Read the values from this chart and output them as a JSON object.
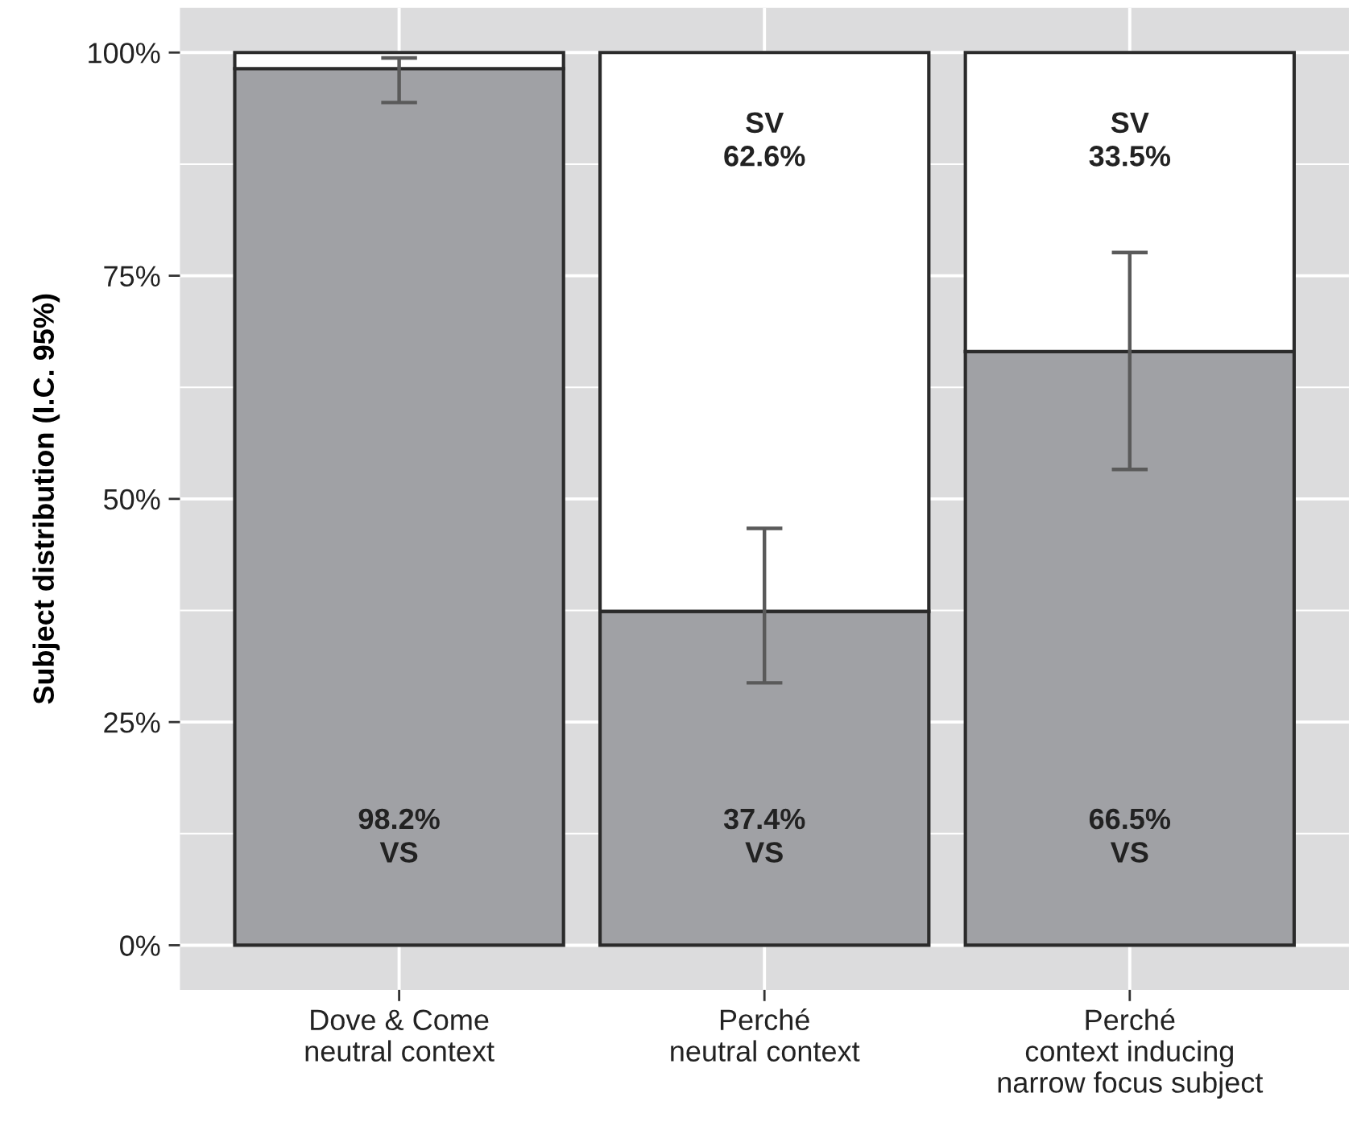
{
  "chart_data": {
    "type": "bar",
    "stacked": true,
    "ylabel": "Subject distribution (I.C. 95%)",
    "categories": [
      "Dove & Come\nneutral context",
      "Perché\nneutral context",
      "Perché\ncontext inducing\nnarrow focus subject"
    ],
    "series": [
      {
        "color": "#a0a1a5",
        "values": [
          98.2,
          37.4,
          66.5
        ],
        "value_labels": [
          "98.2%\nVS",
          "37.4%\nVS",
          "66.5%\nVS"
        ],
        "errors": [
          [
            94.4,
            99.4
          ],
          [
            29.4,
            46.7
          ],
          [
            53.3,
            77.6
          ]
        ]
      },
      {
        "color": "#ffffff",
        "values": [
          1.8,
          62.6,
          33.5
        ],
        "value_labels": [
          null,
          "SV\n62.6%",
          "SV\n33.5%"
        ]
      }
    ],
    "ylim": [
      -5,
      105
    ],
    "yticks": [
      {
        "value": 0,
        "label": "0%"
      },
      {
        "value": 25,
        "label": "25%"
      },
      {
        "value": 50,
        "label": "50%"
      },
      {
        "value": 75,
        "label": "75%"
      },
      {
        "value": 100,
        "label": "100%"
      }
    ],
    "grid": true
  }
}
